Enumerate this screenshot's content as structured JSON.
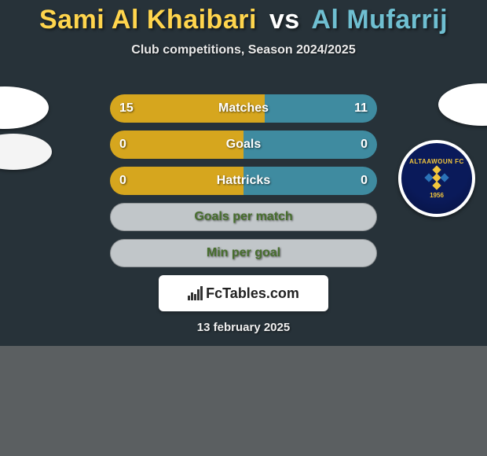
{
  "title": {
    "left": "Sami Al Khaibari",
    "vs": "vs",
    "right": "Al Mufarrij"
  },
  "subtitle": "Club competitions, Season 2024/2025",
  "rows": [
    {
      "kind": "split",
      "label": "Matches",
      "left": "15",
      "right": "11",
      "leftPct": 58,
      "rightPct": 42
    },
    {
      "kind": "split",
      "label": "Goals",
      "left": "0",
      "right": "0",
      "leftPct": 50,
      "rightPct": 50
    },
    {
      "kind": "split",
      "label": "Hattricks",
      "left": "0",
      "right": "0",
      "leftPct": 50,
      "rightPct": 50
    },
    {
      "kind": "neutral",
      "label": "Goals per match"
    },
    {
      "kind": "neutral",
      "label": "Min per goal"
    }
  ],
  "club": {
    "name": "ALTAAWOUN FC",
    "year": "1956"
  },
  "logo": "FcTables.com",
  "date": "13 february 2025",
  "colors": {
    "leftBar": "#d6a61e",
    "rightBar": "#3f8ba0",
    "neutralBar": "#c1c6c9",
    "bg": "#273239",
    "pageBg": "#5b5f61"
  }
}
